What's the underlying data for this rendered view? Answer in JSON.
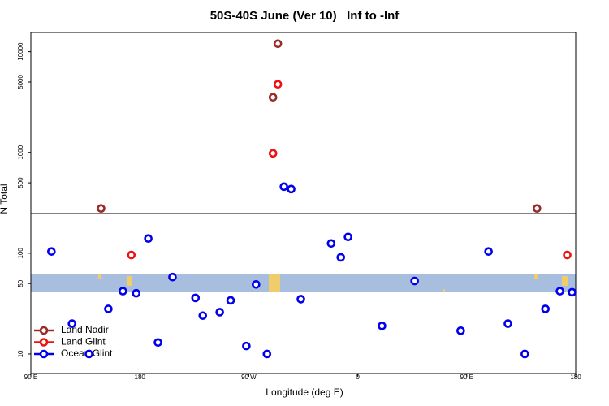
{
  "chart_data": {
    "type": "scatter",
    "title": "50S-40S June (Ver 10)   Inf to -Inf",
    "x_label": "Longitude (deg E)",
    "y_label": "N Total",
    "xlim": [
      90,
      540
    ],
    "xticks": [
      {
        "value": 90,
        "label": "90 E"
      },
      180,
      {
        "value": 270,
        "label": "90 W"
      },
      {
        "value": 360,
        "label": "0"
      },
      {
        "value": 450,
        "label": "90 E"
      },
      {
        "value": 540,
        "label": "180"
      }
    ],
    "ylim": [
      6.4,
      15500
    ],
    "yticks": [
      10,
      50,
      100,
      500,
      1000,
      5000,
      10000
    ],
    "ylog": true,
    "legend": "bottom-left",
    "series": [
      {
        "name": "Land Nadir",
        "color": "#9b2b2b",
        "x": [
          148,
          294,
          290,
          508
        ],
        "values": [
          278,
          12000,
          3530,
          278
        ]
      },
      {
        "name": "Land Glint",
        "color": "#ee1111",
        "x": [
          173,
          294,
          290,
          533
        ],
        "values": [
          96,
          4750,
          980,
          96
        ]
      },
      {
        "name": "Ocean Glint",
        "color": "#0000ee",
        "x": [
          107,
          124,
          138,
          154,
          166,
          177,
          187,
          195,
          207,
          226,
          232,
          246,
          255,
          268,
          276,
          285,
          299,
          305,
          313,
          338,
          346,
          352,
          380,
          407,
          445,
          468,
          484,
          498,
          515,
          527,
          537
        ],
        "values": [
          104,
          20,
          10,
          28,
          42,
          40,
          140,
          13,
          58,
          36,
          24,
          26,
          34,
          12,
          49,
          10,
          458,
          433,
          35,
          125,
          91,
          145,
          19,
          53,
          17,
          104,
          20,
          10,
          28,
          42,
          41
        ]
      }
    ]
  }
}
